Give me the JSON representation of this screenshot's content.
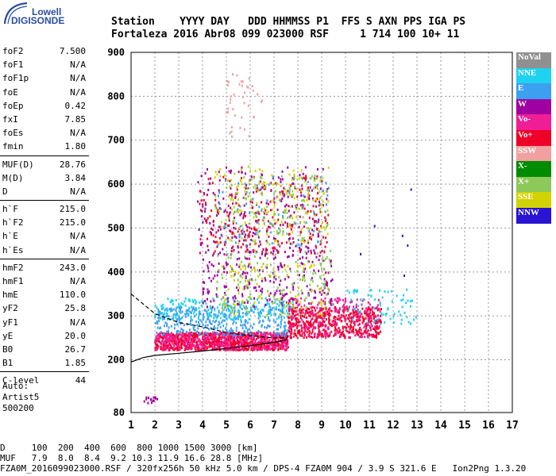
{
  "logo": {
    "line1": "Lowell",
    "line2": "DIGISONDE"
  },
  "header": {
    "row1": "Station    YYYY DAY   DDD HHMMSS P1  FFS S AXN PPS IGA PS",
    "row2": "Fortaleza 2016 Abr08 099 023000 RSF     1 714 100 10+ 11"
  },
  "params": {
    "group1": [
      {
        "name": "foF2",
        "value": "7.500"
      },
      {
        "name": "foF1",
        "value": "N/A"
      },
      {
        "name": "foF1p",
        "value": "N/A"
      },
      {
        "name": "foE",
        "value": "N/A"
      },
      {
        "name": "foEp",
        "value": "0.42"
      },
      {
        "name": "fxI",
        "value": "7.85"
      },
      {
        "name": "foEs",
        "value": "N/A"
      },
      {
        "name": "fmin",
        "value": "1.80"
      }
    ],
    "group2": [
      {
        "name": "MUF(D)",
        "value": "28.76"
      },
      {
        "name": "M(D)",
        "value": "3.84"
      },
      {
        "name": "D",
        "value": "N/A"
      }
    ],
    "group3": [
      {
        "name": "h`F",
        "value": "215.0"
      },
      {
        "name": "h`F2",
        "value": "215.0"
      },
      {
        "name": "h`E",
        "value": "N/A"
      },
      {
        "name": "h`Es",
        "value": "N/A"
      }
    ],
    "group4": [
      {
        "name": "hmF2",
        "value": "243.0"
      },
      {
        "name": "hmF1",
        "value": "N/A"
      },
      {
        "name": "hmE",
        "value": "110.0"
      },
      {
        "name": "yF2",
        "value": "25.8"
      },
      {
        "name": "yF1",
        "value": "N/A"
      },
      {
        "name": "yE",
        "value": "20.0"
      },
      {
        "name": "B0",
        "value": "26.7"
      },
      {
        "name": "B1",
        "value": "1.85"
      }
    ],
    "group5": [
      {
        "name": "C-level",
        "value": "44"
      }
    ]
  },
  "auto": {
    "line1": "Auto:",
    "line2": "Artist5",
    "line3": "500200"
  },
  "legend": [
    {
      "label": "NoVal",
      "color": "#909090"
    },
    {
      "label": "NNE",
      "color": "#1ed2f0"
    },
    {
      "label": "E",
      "color": "#3ca0f0"
    },
    {
      "label": "W",
      "color": "#a000a0"
    },
    {
      "label": "Vo-",
      "color": "#f01e96"
    },
    {
      "label": "Vo+",
      "color": "#f00028"
    },
    {
      "label": "SSW",
      "color": "#f0a0a0"
    },
    {
      "label": "X-",
      "color": "#008c00"
    },
    {
      "label": "X+",
      "color": "#8cc85a"
    },
    {
      "label": "SSE",
      "color": "#d2d200"
    },
    {
      "label": "NNW",
      "color": "#2814d2"
    }
  ],
  "chart_data": {
    "type": "scatter",
    "xlim": [
      1,
      17
    ],
    "ylim": [
      80,
      900
    ],
    "xticks": [
      1,
      2,
      3,
      4,
      5,
      6,
      7,
      8,
      9,
      10,
      11,
      12,
      13,
      14,
      15,
      16,
      17
    ],
    "yticks": [
      80,
      200,
      300,
      400,
      500,
      600,
      700,
      800,
      900
    ],
    "grid": "dashed",
    "legend_position": "right",
    "clusters": [
      {
        "color": "#f00028",
        "x": [
          2.0,
          7.6
        ],
        "y": [
          222,
          262
        ],
        "n": 900
      },
      {
        "color": "#f01e96",
        "x": [
          2.0,
          7.6
        ],
        "y": [
          222,
          262
        ],
        "n": 400
      },
      {
        "color": "#3ca0f0",
        "x": [
          2.0,
          7.6
        ],
        "y": [
          255,
          320
        ],
        "n": 350
      },
      {
        "color": "#1ed2f0",
        "x": [
          2.0,
          7.8
        ],
        "y": [
          290,
          340
        ],
        "n": 200
      },
      {
        "color": "#f00028",
        "x": [
          7.6,
          11.5
        ],
        "y": [
          250,
          320
        ],
        "n": 500
      },
      {
        "color": "#f01e96",
        "x": [
          7.6,
          11.5
        ],
        "y": [
          250,
          340
        ],
        "n": 250
      },
      {
        "color": "#a000a0",
        "x": [
          4.0,
          9.5
        ],
        "y": [
          320,
          450
        ],
        "n": 250
      },
      {
        "color": "#8cc85a",
        "x": [
          4.5,
          9.5
        ],
        "y": [
          320,
          450
        ],
        "n": 120
      },
      {
        "color": "#d2d200",
        "x": [
          4.8,
          9.3
        ],
        "y": [
          300,
          420
        ],
        "n": 100
      },
      {
        "color": "#1ed2f0",
        "x": [
          10.0,
          13.0
        ],
        "y": [
          280,
          360
        ],
        "n": 70
      },
      {
        "color": "#a000a0",
        "x": [
          3.8,
          9.3
        ],
        "y": [
          440,
          640
        ],
        "n": 250
      },
      {
        "color": "#f00028",
        "x": [
          3.8,
          9.3
        ],
        "y": [
          440,
          620
        ],
        "n": 200
      },
      {
        "color": "#d2d200",
        "x": [
          4.5,
          9.3
        ],
        "y": [
          460,
          640
        ],
        "n": 180
      },
      {
        "color": "#8cc85a",
        "x": [
          5.0,
          9.3
        ],
        "y": [
          460,
          620
        ],
        "n": 100
      },
      {
        "color": "#3ca0f0",
        "x": [
          4.5,
          9.3
        ],
        "y": [
          460,
          620
        ],
        "n": 80
      },
      {
        "color": "#f0a0a0",
        "x": [
          5.0,
          6.5
        ],
        "y": [
          700,
          850
        ],
        "n": 40
      },
      {
        "color": "#a000a0",
        "x": [
          1.5,
          2.2
        ],
        "y": [
          100,
          115
        ],
        "n": 15
      },
      {
        "color": "#2814d2",
        "x": [
          10.3,
          12.8
        ],
        "y": [
          310,
          620
        ],
        "n": 6
      }
    ],
    "curves": [
      {
        "style": "dashed",
        "x": [
          1,
          2,
          3,
          4,
          5,
          6,
          7,
          7.5
        ],
        "y": [
          350,
          305,
          285,
          275,
          262,
          255,
          250,
          250
        ]
      },
      {
        "style": "solid",
        "x": [
          1,
          1.5,
          2,
          3,
          4,
          5,
          6,
          7,
          7.5,
          7.6
        ],
        "y": [
          195,
          205,
          210,
          215,
          220,
          226,
          232,
          240,
          245,
          255
        ]
      }
    ]
  },
  "footer": {
    "row1": "D     100  200  400  600  800 1000 1500 3000 [km]",
    "row2": "MUF   7.9  8.0  8.4  9.2 10.3 11.9 16.6 28.8 [MHz]",
    "row3": "FZA0M_2016099023000.RSF / 320fx256h 50 kHz 5.0 km / DPS-4 FZA0M 904 / 3.9 S 321.6 E   Ion2Png 1.3.20"
  }
}
